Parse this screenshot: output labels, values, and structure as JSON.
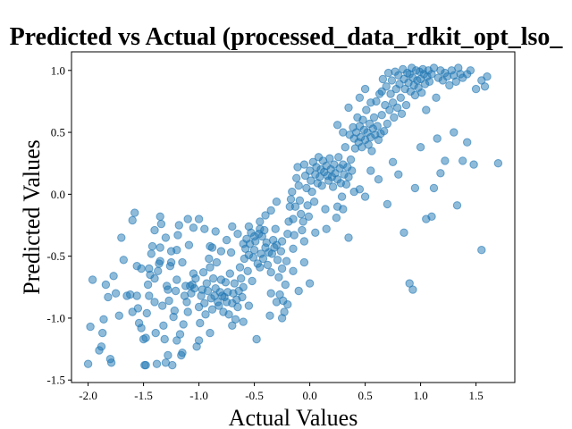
{
  "chart_data": {
    "type": "scatter",
    "title": "Predicted vs Actual (processed_data_rdkit_opt_lso_",
    "xlabel": "Actual Values",
    "ylabel": "Predicted Values",
    "xlim": [
      -2.15,
      1.85
    ],
    "ylim": [
      -1.52,
      1.15
    ],
    "xticks": [
      "-2.0",
      "-1.5",
      "-1.0",
      "-0.5",
      "0.0",
      "0.5",
      "1.0",
      "1.5"
    ],
    "xtick_values": [
      -2.0,
      -1.5,
      -1.0,
      -0.5,
      0.0,
      0.5,
      1.0,
      1.5
    ],
    "yticks": [
      "-1.5",
      "-1.0",
      "-0.5",
      "0.0",
      "0.5",
      "1.0"
    ],
    "ytick_values": [
      -1.5,
      -1.0,
      -0.5,
      0.0,
      0.5,
      1.0
    ],
    "grid": false,
    "color": "#1f77b4",
    "points": [
      [
        -2.0,
        -1.37
      ],
      [
        -1.98,
        -1.07
      ],
      [
        -1.96,
        -0.69
      ],
      [
        -1.9,
        -1.26
      ],
      [
        -1.88,
        -1.23
      ],
      [
        -1.87,
        -1.12
      ],
      [
        -1.86,
        -1.01
      ],
      [
        -1.84,
        -0.73
      ],
      [
        -1.82,
        -0.83
      ],
      [
        -1.8,
        -1.33
      ],
      [
        -1.79,
        -1.36
      ],
      [
        -1.77,
        -0.66
      ],
      [
        -1.72,
        -0.98
      ],
      [
        -1.7,
        -0.35
      ],
      [
        -1.68,
        -0.53
      ],
      [
        -1.65,
        -0.82
      ],
      [
        -1.62,
        -0.81
      ],
      [
        -1.6,
        -0.21
      ],
      [
        -1.58,
        -0.15
      ],
      [
        -1.56,
        -0.58
      ],
      [
        -1.55,
        -0.92
      ],
      [
        -1.54,
        -1.04
      ],
      [
        -1.52,
        -1.08
      ],
      [
        -1.5,
        -1.17
      ],
      [
        -1.49,
        -1.38
      ],
      [
        -1.48,
        -1.16
      ],
      [
        -1.47,
        -0.96
      ],
      [
        -1.46,
        -0.73
      ],
      [
        -1.45,
        -0.82
      ],
      [
        -1.44,
        -0.65
      ],
      [
        -1.43,
        -0.48
      ],
      [
        -1.42,
        -0.42
      ],
      [
        -1.4,
        -0.87
      ],
      [
        -1.39,
        -1.12
      ],
      [
        -1.38,
        -1.37
      ],
      [
        -1.37,
        -0.62
      ],
      [
        -1.36,
        -0.56
      ],
      [
        -1.35,
        -0.54
      ],
      [
        -1.34,
        -0.24
      ],
      [
        -1.33,
        -0.9
      ],
      [
        -1.32,
        -1.06
      ],
      [
        -1.31,
        -1.17
      ],
      [
        -1.3,
        -1.36
      ],
      [
        -1.29,
        -0.74
      ],
      [
        -1.28,
        -0.77
      ],
      [
        -1.27,
        -0.86
      ],
      [
        -1.26,
        -0.58
      ],
      [
        -1.25,
        -0.46
      ],
      [
        -1.24,
        -1.38
      ],
      [
        -1.23,
        -0.99
      ],
      [
        -1.22,
        -0.94
      ],
      [
        -1.21,
        -0.78
      ],
      [
        -1.2,
        -0.69
      ],
      [
        -1.19,
        -0.33
      ],
      [
        -1.18,
        -0.25
      ],
      [
        -1.17,
        -1.13
      ],
      [
        -1.16,
        -1.3
      ],
      [
        -1.15,
        -1.28
      ],
      [
        -1.14,
        -1.05
      ],
      [
        -1.13,
        -0.82
      ],
      [
        -1.12,
        -0.74
      ],
      [
        -1.11,
        -0.87
      ],
      [
        -1.1,
        -0.95
      ],
      [
        -1.09,
        -0.41
      ],
      [
        -1.08,
        -0.74
      ],
      [
        -1.07,
        -0.8
      ],
      [
        -1.06,
        -0.73
      ],
      [
        -1.05,
        -0.64
      ],
      [
        -1.04,
        -0.76
      ],
      [
        -1.03,
        -0.68
      ],
      [
        -1.02,
        -1.23
      ],
      [
        -1.0,
        -0.91
      ],
      [
        -0.99,
        -1.04
      ],
      [
        -0.98,
        -0.82
      ],
      [
        -0.97,
        -0.77
      ],
      [
        -0.96,
        -0.63
      ],
      [
        -0.95,
        -0.88
      ],
      [
        -0.94,
        -0.97
      ],
      [
        -0.93,
        -0.72
      ],
      [
        -0.92,
        -0.78
      ],
      [
        -0.91,
        -0.52
      ],
      [
        -0.9,
        -0.59
      ],
      [
        -0.89,
        -0.84
      ],
      [
        -0.88,
        -0.93
      ],
      [
        -0.87,
        -0.68
      ],
      [
        -0.86,
        -0.82
      ],
      [
        -0.85,
        -0.76
      ],
      [
        -0.84,
        -0.55
      ],
      [
        -0.83,
        -0.87
      ],
      [
        -0.82,
        -0.9
      ],
      [
        -0.81,
        -0.79
      ],
      [
        -0.8,
        -0.69
      ],
      [
        -0.79,
        -0.82
      ],
      [
        -0.78,
        -0.95
      ],
      [
        -0.77,
        -0.83
      ],
      [
        -0.76,
        -0.71
      ],
      [
        -0.75,
        -0.87
      ],
      [
        -0.74,
        -0.79
      ],
      [
        -0.73,
        -0.97
      ],
      [
        -0.72,
        -0.64
      ],
      [
        -0.71,
        -0.47
      ],
      [
        -0.7,
        -0.88
      ],
      [
        -0.69,
        -0.8
      ],
      [
        -0.68,
        -0.72
      ],
      [
        -0.67,
        -1.01
      ],
      [
        -0.66,
        -0.85
      ],
      [
        -0.65,
        -0.91
      ],
      [
        -0.64,
        -0.78
      ],
      [
        -0.63,
        -0.59
      ],
      [
        -0.62,
        -0.68
      ],
      [
        -0.61,
        -0.83
      ],
      [
        -0.6,
        -0.75
      ],
      [
        -0.59,
        -0.52
      ],
      [
        -0.58,
        -0.44
      ],
      [
        -0.57,
        -0.36
      ],
      [
        -0.56,
        -0.62
      ],
      [
        -0.55,
        -0.49
      ],
      [
        -0.54,
        -0.4
      ],
      [
        -0.53,
        -0.31
      ],
      [
        -0.52,
        -0.7
      ],
      [
        -0.51,
        -0.51
      ],
      [
        -0.5,
        -0.45
      ],
      [
        -0.49,
        -0.38
      ],
      [
        -0.48,
        -1.17
      ],
      [
        -0.47,
        -0.56
      ],
      [
        -0.46,
        -0.32
      ],
      [
        -0.45,
        -0.59
      ],
      [
        -0.44,
        -0.48
      ],
      [
        -0.43,
        -0.34
      ],
      [
        -0.42,
        -0.52
      ],
      [
        -0.41,
        -0.29
      ],
      [
        -0.4,
        -0.43
      ],
      [
        -0.39,
        -0.39
      ],
      [
        -0.38,
        -0.57
      ],
      [
        -0.37,
        -0.47
      ],
      [
        -0.36,
        -0.98
      ],
      [
        -0.35,
        -0.63
      ],
      [
        -0.34,
        -0.48
      ],
      [
        -0.33,
        -0.37
      ],
      [
        -0.32,
        -0.43
      ],
      [
        -0.31,
        -0.28
      ],
      [
        -0.3,
        -0.41
      ],
      [
        -0.29,
        -0.53
      ],
      [
        -0.28,
        -0.67
      ],
      [
        -0.27,
        -0.81
      ],
      [
        -0.26,
        -0.46
      ],
      [
        -0.25,
        -0.38
      ],
      [
        -0.24,
        -0.86
      ],
      [
        -0.23,
        -0.95
      ],
      [
        -0.22,
        -0.73
      ],
      [
        -0.21,
        -0.54
      ],
      [
        -0.2,
        -0.32
      ],
      [
        -0.19,
        -0.22
      ],
      [
        -0.18,
        -0.1
      ],
      [
        -0.17,
        -0.04
      ],
      [
        -0.16,
        0.02
      ],
      [
        -0.15,
        -0.2
      ],
      [
        -0.14,
        -0.33
      ],
      [
        -0.13,
        -0.1
      ],
      [
        -0.12,
        0.13
      ],
      [
        -0.11,
        0.22
      ],
      [
        -0.1,
        0.07
      ],
      [
        -0.09,
        -0.05
      ],
      [
        -0.08,
        -0.16
      ],
      [
        -0.07,
        -0.29
      ],
      [
        -0.06,
        -0.22
      ],
      [
        -0.05,
        0.24
      ],
      [
        -0.04,
        0.15
      ],
      [
        -0.03,
        0.05
      ],
      [
        -0.02,
        -0.09
      ],
      [
        -0.01,
        -0.18
      ],
      [
        0.0,
        0.19
      ],
      [
        0.01,
        0.11
      ],
      [
        0.02,
        0.02
      ],
      [
        0.03,
        0.26
      ],
      [
        0.04,
        -0.06
      ],
      [
        0.05,
        0.16
      ],
      [
        0.06,
        0.22
      ],
      [
        0.07,
        0.09
      ],
      [
        0.08,
        0.3
      ],
      [
        0.09,
        0.14
      ],
      [
        0.1,
        0.2
      ],
      [
        0.11,
        0.07
      ],
      [
        0.12,
        0.27
      ],
      [
        0.13,
        0.18
      ],
      [
        0.14,
        -0.12
      ],
      [
        0.15,
        0.23
      ],
      [
        0.16,
        0.15
      ],
      [
        0.17,
        0.11
      ],
      [
        0.18,
        0.29
      ],
      [
        0.19,
        0.2
      ],
      [
        0.2,
        0.14
      ],
      [
        0.21,
        0.06
      ],
      [
        0.22,
        0.24
      ],
      [
        0.23,
        0.17
      ],
      [
        0.24,
        -0.19
      ],
      [
        0.25,
        0.12
      ],
      [
        0.26,
        0.3
      ],
      [
        0.27,
        0.21
      ],
      [
        0.28,
        0.09
      ],
      [
        0.29,
        -0.02
      ],
      [
        0.3,
        0.24
      ],
      [
        0.31,
        0.16
      ],
      [
        0.32,
        0.38
      ],
      [
        0.33,
        0.08
      ],
      [
        0.34,
        0.22
      ],
      [
        0.35,
        0.14
      ],
      [
        0.36,
        0.48
      ],
      [
        0.37,
        0.28
      ],
      [
        0.38,
        0.19
      ],
      [
        0.39,
        0.54
      ],
      [
        0.4,
        0.45
      ],
      [
        0.41,
        0.37
      ],
      [
        0.42,
        0.5
      ],
      [
        0.43,
        0.62
      ],
      [
        0.44,
        0.42
      ],
      [
        0.45,
        0.55
      ],
      [
        0.46,
        0.46
      ],
      [
        0.47,
        0.38
      ],
      [
        0.48,
        0.6
      ],
      [
        0.49,
        0.52
      ],
      [
        0.5,
        0.44
      ],
      [
        0.51,
        0.68
      ],
      [
        0.52,
        0.5
      ],
      [
        0.53,
        0.4
      ],
      [
        0.54,
        0.57
      ],
      [
        0.55,
        0.46
      ],
      [
        0.56,
        0.35
      ],
      [
        0.57,
        0.53
      ],
      [
        0.58,
        0.62
      ],
      [
        0.59,
        0.48
      ],
      [
        0.6,
        0.75
      ],
      [
        0.61,
        0.55
      ],
      [
        0.62,
        0.44
      ],
      [
        0.63,
        0.81
      ],
      [
        0.64,
        0.49
      ],
      [
        0.65,
        0.64
      ],
      [
        0.66,
        0.93
      ],
      [
        0.67,
        0.51
      ],
      [
        0.68,
        0.72
      ],
      [
        0.69,
        0.87
      ],
      [
        0.7,
        0.57
      ],
      [
        0.71,
        0.98
      ],
      [
        0.72,
        0.68
      ],
      [
        0.73,
        0.81
      ],
      [
        0.74,
        0.92
      ],
      [
        0.75,
        0.74
      ],
      [
        0.76,
        0.62
      ],
      [
        0.77,
        0.99
      ],
      [
        0.78,
        0.85
      ],
      [
        0.79,
        0.7
      ],
      [
        0.8,
        0.96
      ],
      [
        0.81,
        0.89
      ],
      [
        0.82,
        0.78
      ],
      [
        0.83,
        0.65
      ],
      [
        0.84,
        1.01
      ],
      [
        0.85,
        0.93
      ],
      [
        0.86,
        0.85
      ],
      [
        0.87,
        0.72
      ],
      [
        0.88,
        0.98
      ],
      [
        0.89,
        0.9
      ],
      [
        0.9,
        0.97
      ],
      [
        0.91,
        0.83
      ],
      [
        0.92,
        1.02
      ],
      [
        0.93,
        0.94
      ],
      [
        0.94,
        0.88
      ],
      [
        0.95,
        0.8
      ],
      [
        0.96,
        1.0
      ],
      [
        0.97,
        0.92
      ],
      [
        0.98,
        0.86
      ],
      [
        0.99,
        0.99
      ],
      [
        1.0,
        0.93
      ],
      [
        1.01,
        0.82
      ],
      [
        1.02,
        1.01
      ],
      [
        1.03,
        0.97
      ],
      [
        1.04,
        0.89
      ],
      [
        1.05,
        0.68
      ],
      [
        1.06,
        0.95
      ],
      [
        1.07,
        1.0
      ],
      [
        1.08,
        0.91
      ],
      [
        1.1,
        0.97
      ],
      [
        1.12,
        1.02
      ],
      [
        1.14,
        0.78
      ],
      [
        1.16,
        0.94
      ],
      [
        1.18,
        1.0
      ],
      [
        1.2,
        0.92
      ],
      [
        1.22,
        0.98
      ],
      [
        1.24,
        0.95
      ],
      [
        1.26,
        0.88
      ],
      [
        1.28,
        1.0
      ],
      [
        1.3,
        0.96
      ],
      [
        1.32,
        0.91
      ],
      [
        1.34,
        1.02
      ],
      [
        1.36,
        0.97
      ],
      [
        1.38,
        0.94
      ],
      [
        1.42,
        0.97
      ],
      [
        1.45,
        1.0
      ],
      [
        1.5,
        0.85
      ],
      [
        1.55,
        0.92
      ],
      [
        1.58,
        0.87
      ],
      [
        1.6,
        0.95
      ],
      [
        0.55,
        0.19
      ],
      [
        0.62,
        0.12
      ],
      [
        0.7,
        -0.08
      ],
      [
        0.75,
        0.26
      ],
      [
        0.8,
        0.16
      ],
      [
        0.85,
        -0.31
      ],
      [
        0.9,
        -0.72
      ],
      [
        0.93,
        -0.77
      ],
      [
        0.95,
        0.05
      ],
      [
        1.0,
        0.38
      ],
      [
        1.05,
        -0.2
      ],
      [
        1.1,
        -0.18
      ],
      [
        1.12,
        0.05
      ],
      [
        1.15,
        0.45
      ],
      [
        1.18,
        0.17
      ],
      [
        1.22,
        0.27
      ],
      [
        1.3,
        0.5
      ],
      [
        1.33,
        -0.09
      ],
      [
        1.38,
        0.27
      ],
      [
        1.42,
        0.42
      ],
      [
        1.48,
        0.24
      ],
      [
        1.55,
        -0.45
      ],
      [
        1.7,
        0.25
      ],
      [
        -0.55,
        -0.26
      ],
      [
        -0.6,
        -0.4
      ],
      [
        -0.65,
        -0.32
      ],
      [
        -0.7,
        -0.26
      ],
      [
        -0.75,
        -0.37
      ],
      [
        -0.8,
        -0.46
      ],
      [
        -0.85,
        -0.3
      ],
      [
        -0.9,
        -0.42
      ],
      [
        -0.95,
        -0.28
      ],
      [
        -1.05,
        -0.27
      ],
      [
        -1.1,
        -0.2
      ],
      [
        -1.15,
        -0.55
      ],
      [
        -1.2,
        -0.45
      ],
      [
        -1.25,
        -0.55
      ],
      [
        -1.3,
        -0.35
      ],
      [
        -1.35,
        -0.43
      ],
      [
        -1.4,
        -0.68
      ],
      [
        -1.45,
        -0.6
      ],
      [
        -0.3,
        -0.06
      ],
      [
        -0.35,
        -0.13
      ],
      [
        -0.4,
        -0.17
      ],
      [
        -0.45,
        -0.28
      ],
      [
        -0.5,
        -0.34
      ],
      [
        -0.15,
        -0.44
      ],
      [
        -0.05,
        -0.38
      ],
      [
        0.05,
        -0.31
      ],
      [
        0.15,
        -0.28
      ],
      [
        0.25,
        -0.1
      ],
      [
        0.3,
        -0.12
      ],
      [
        0.35,
        -0.35
      ],
      [
        0.4,
        0.02
      ],
      [
        0.45,
        0.04
      ],
      [
        0.5,
        -0.02
      ],
      [
        0.35,
        0.7
      ],
      [
        0.45,
        0.78
      ],
      [
        0.5,
        0.85
      ],
      [
        0.55,
        0.74
      ],
      [
        0.65,
        0.83
      ],
      [
        0.3,
        0.5
      ],
      [
        0.25,
        0.56
      ],
      [
        -0.2,
        -0.89
      ],
      [
        -0.25,
        -1.0
      ],
      [
        -0.3,
        -0.87
      ],
      [
        -0.1,
        -0.78
      ],
      [
        0.0,
        -0.72
      ],
      [
        -0.6,
        -1.03
      ],
      [
        -0.7,
        -1.06
      ],
      [
        -0.9,
        -1.12
      ],
      [
        -1.0,
        -1.18
      ],
      [
        -0.55,
        -0.9
      ],
      [
        -1.2,
        -1.18
      ],
      [
        -1.28,
        -1.3
      ],
      [
        -1.48,
        -1.38
      ],
      [
        -1.56,
        -0.82
      ],
      [
        -1.52,
        -0.6
      ],
      [
        -1.6,
        -0.95
      ],
      [
        -1.75,
        -0.8
      ],
      [
        -1.4,
        -0.29
      ],
      [
        -1.35,
        -0.18
      ],
      [
        -1.0,
        -0.2
      ],
      [
        -0.88,
        -0.43
      ],
      [
        -0.45,
        -0.22
      ],
      [
        -0.35,
        -0.8
      ],
      [
        -0.25,
        -0.6
      ],
      [
        -0.15,
        -0.62
      ],
      [
        -0.05,
        -0.55
      ]
    ]
  }
}
